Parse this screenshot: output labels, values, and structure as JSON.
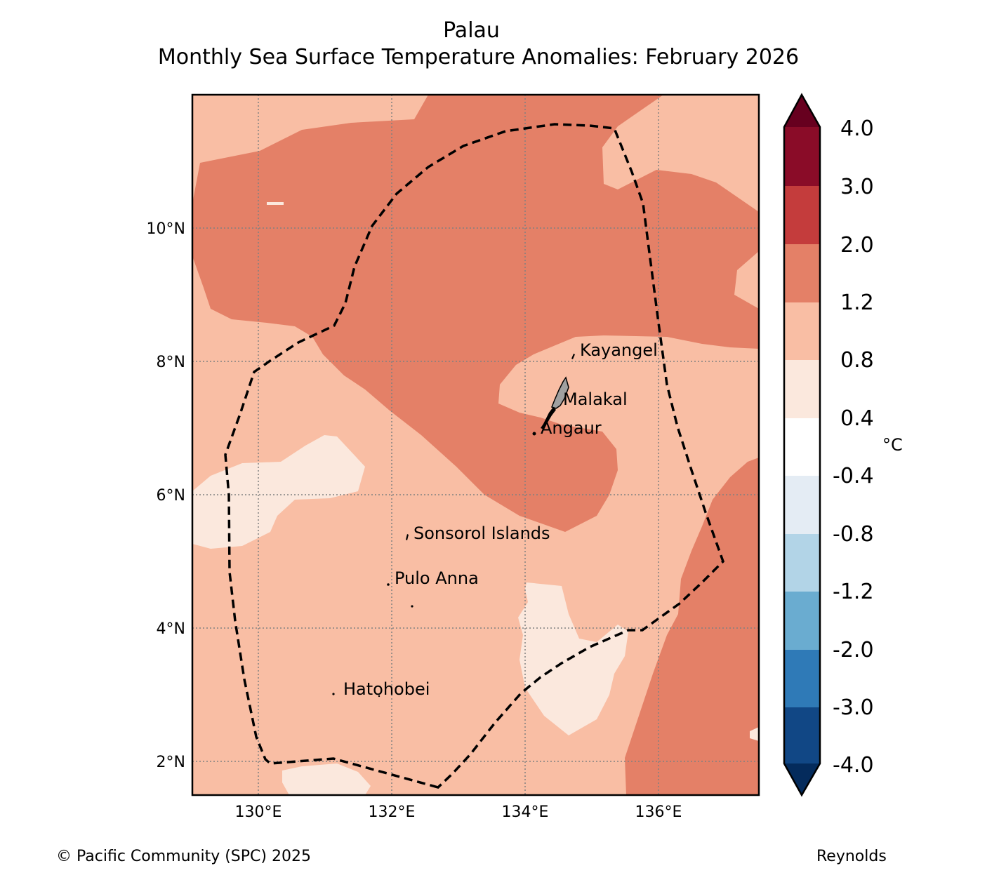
{
  "title": {
    "line1": "Palau",
    "line2": "Monthly Sea Surface Temperature Anomalies: February 2026"
  },
  "map": {
    "lon_ticks": [
      "130°E",
      "132°E",
      "134°E",
      "136°E"
    ],
    "lat_ticks": [
      "10°N",
      "8°N",
      "6°N",
      "4°N",
      "2°N"
    ],
    "places": [
      "Kayangel",
      "Malakal",
      "Angaur",
      "Sonsorol Islands",
      "Pulo Anna",
      "Hatohobei"
    ],
    "boundary": "EEZ boundary (dashed)"
  },
  "colorbar": {
    "unit": "°C",
    "tick_labels": [
      "4.0",
      "3.0",
      "2.0",
      "1.2",
      "0.8",
      "0.4",
      "-0.4",
      "-0.8",
      "-1.2",
      "-2.0",
      "-3.0",
      "-4.0"
    ],
    "colors": {
      "above_4": "#67001f",
      "3_4": "#8a0c28",
      "2_3": "#c43c3c",
      "1.2_2": "#e48067",
      "0.8_1.2": "#f9bea4",
      "0.4_0.8": "#fbe8dd",
      "neutral": "#ffffff",
      "m0.4_m0.8": "#e4ecf4",
      "m0.8_m1.2": "#b2d4e7",
      "m1.2_m2": "#6aacd0",
      "m2_m3": "#2f7ab7",
      "m3_m4": "#114785",
      "below_m4": "#042b5c"
    }
  },
  "footer": {
    "copyright": "© Pacific Community (SPC) 2025",
    "source": "Reynolds"
  }
}
